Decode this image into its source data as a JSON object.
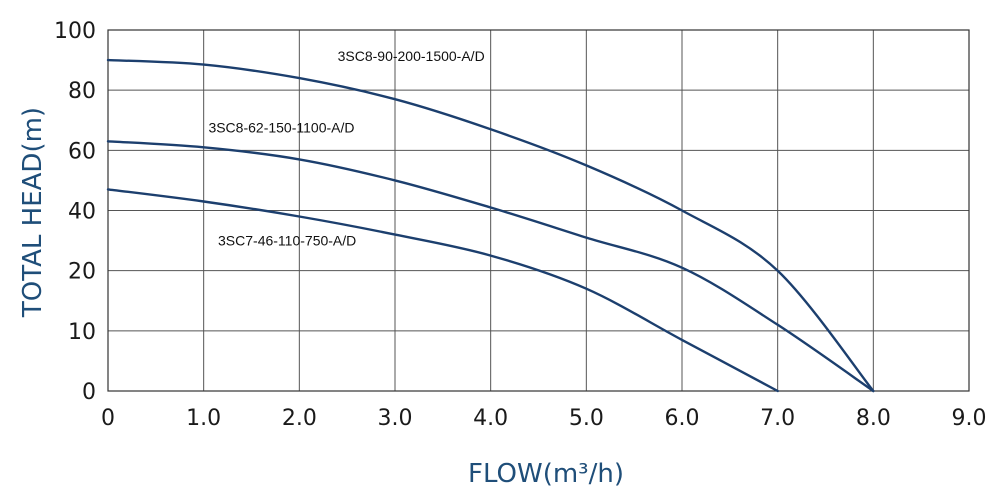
{
  "chart_data": {
    "type": "line",
    "xlabel": "FLOW(m³/h)",
    "ylabel": "TOTAL HEAD(m)",
    "xlim": [
      0,
      9
    ],
    "ylim": [
      0,
      100
    ],
    "grid": true,
    "x_ticks": [
      "0",
      "1.0",
      "2.0",
      "3.0",
      "4.0",
      "5.0",
      "6.0",
      "7.0",
      "8.0",
      "9.0"
    ],
    "y_ticks": [
      "0",
      "10",
      "20",
      "40",
      "60",
      "80",
      "100"
    ],
    "colors": {
      "curve": "#1c3f6e",
      "axis_title": "#1f4e79",
      "grid": "#555555"
    },
    "series": [
      {
        "name": "3SC8-90-200-1500-A/D",
        "x": [
          0,
          1.0,
          2.0,
          3.0,
          4.0,
          5.0,
          6.0,
          7.0,
          8.0
        ],
        "y": [
          90,
          88.5,
          84,
          77,
          67,
          55,
          40,
          20,
          0
        ]
      },
      {
        "name": "3SC8-62-150-1100-A/D",
        "x": [
          0,
          1.0,
          2.0,
          3.0,
          4.0,
          5.0,
          6.0,
          7.0,
          8.0
        ],
        "y": [
          63,
          61,
          57,
          50,
          41,
          31,
          21,
          11,
          0
        ]
      },
      {
        "name": "3SC7-46-110-750-A/D",
        "x": [
          0,
          1.0,
          2.0,
          3.0,
          4.0,
          5.0,
          6.0,
          7.0
        ],
        "y": [
          47,
          43,
          38,
          32,
          25,
          17,
          8.5,
          0
        ]
      }
    ]
  }
}
